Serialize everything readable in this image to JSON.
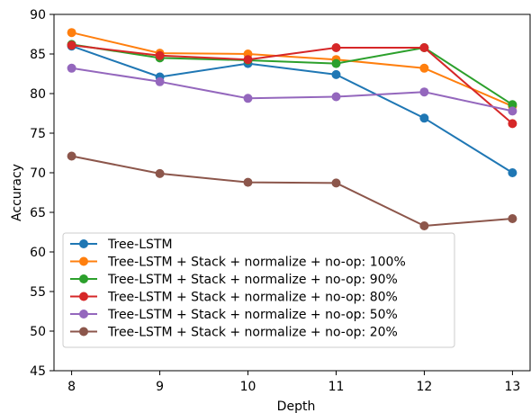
{
  "chart_data": {
    "type": "line",
    "xlabel": "Depth",
    "ylabel": "Accuracy",
    "x": [
      8,
      9,
      10,
      11,
      12,
      13
    ],
    "xlim": [
      7.8,
      13.2
    ],
    "ylim": [
      45,
      90
    ],
    "xticks": [
      "8",
      "9",
      "10",
      "11",
      "12",
      "13"
    ],
    "yticks": [
      "45",
      "50",
      "55",
      "60",
      "65",
      "70",
      "75",
      "80",
      "85",
      "90"
    ],
    "grid": false,
    "legend_position": "lower-left",
    "series": [
      {
        "name": "Tree-LSTM",
        "color": "#1f77b4",
        "values": [
          86.0,
          82.1,
          83.8,
          82.4,
          76.9,
          70.0
        ]
      },
      {
        "name": "Tree-LSTM + Stack + normalize + no-op: 100%",
        "color": "#ff7f0e",
        "values": [
          87.7,
          85.1,
          85.0,
          84.3,
          83.2,
          78.4
        ]
      },
      {
        "name": "Tree-LSTM + Stack + normalize + no-op: 90%",
        "color": "#2ca02c",
        "values": [
          86.2,
          84.5,
          84.2,
          83.8,
          85.8,
          78.6
        ]
      },
      {
        "name": "Tree-LSTM + Stack + normalize + no-op: 80%",
        "color": "#d62728",
        "values": [
          86.1,
          84.8,
          84.3,
          85.8,
          85.8,
          76.2
        ]
      },
      {
        "name": "Tree-LSTM + Stack + normalize + no-op: 50%",
        "color": "#9467bd",
        "values": [
          83.2,
          81.5,
          79.4,
          79.6,
          80.2,
          77.8
        ]
      },
      {
        "name": "Tree-LSTM + Stack + normalize + no-op: 20%",
        "color": "#8c564b",
        "values": [
          72.1,
          69.9,
          68.8,
          68.7,
          63.3,
          64.2
        ]
      }
    ]
  }
}
